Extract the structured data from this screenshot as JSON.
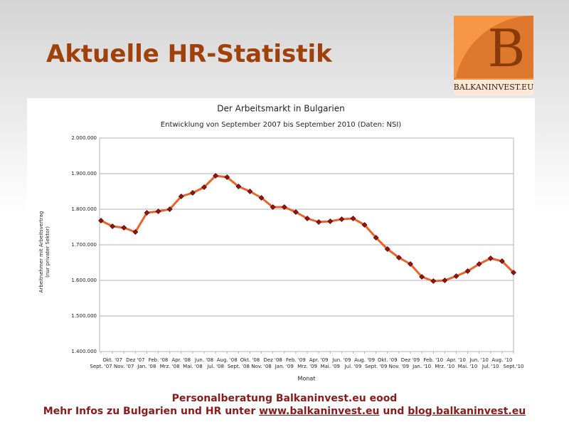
{
  "slide": {
    "title": "Aktuelle HR-Statistik",
    "logo_letter": "B",
    "logo_text": "BALKANINVEST.EU",
    "footer": {
      "line1": "Personalberatung Balkaninvest.eu eood",
      "line2_prefix": "Mehr Infos zu Bulgarien und HR unter ",
      "link1": "www.balkaninvest.eu",
      "joiner": " und ",
      "link2": "blog.balkaninvest.eu"
    }
  },
  "chart_data": {
    "type": "line",
    "title": "Der Arbeitsmarkt in Bulgarien",
    "subtitle": "Entwicklung von September 2007 bis September 2010 (Daten: NSI)",
    "x_label": "Monat",
    "y_label": [
      "Arbeitnehmer mit Arbeitsvertrag",
      "(nur privater Sektor)"
    ],
    "categories": [
      "Sept. '07",
      "Okt. '07",
      "Nov. '07",
      "Dez '07",
      "Jan. '08",
      "Feb. '08",
      "Mrz. '08",
      "Apr. '08",
      "Mai. '08",
      "Jun. '08",
      "Jul. '08",
      "Aug. '08",
      "Sept. '08",
      "Okt. '08",
      "Nov. '08",
      "Dez '08",
      "Jan. '09",
      "Feb. '09",
      "Mrz. '09",
      "Apr. '09",
      "Mai. '09",
      "Jun. '09",
      "Jul. '09",
      "Aug. '09",
      "Sept. '09",
      "Okt. '09",
      "Nov. '09",
      "Dez '09",
      "Jan. '10",
      "Feb. '10",
      "Mrz. '10",
      "Apr. '10",
      "Mai. '10",
      "Jun. '10",
      "Jul. '10",
      "Aug. '10",
      "Sept.'10"
    ],
    "values": [
      1768000,
      1752000,
      1748000,
      1736000,
      1790000,
      1794000,
      1800000,
      1836000,
      1846000,
      1862000,
      1894000,
      1890000,
      1864000,
      1850000,
      1832000,
      1806000,
      1806000,
      1792000,
      1774000,
      1764000,
      1766000,
      1772000,
      1774000,
      1756000,
      1720000,
      1688000,
      1664000,
      1646000,
      1610000,
      1598000,
      1600000,
      1612000,
      1626000,
      1646000,
      1662000,
      1654000,
      1622000
    ],
    "color": "#e8642a",
    "marker_color": "#a01010",
    "ylim": [
      1400000,
      2000000
    ],
    "yticks": [
      {
        "value": 1400000,
        "label": "1.400.000"
      },
      {
        "value": 1500000,
        "label": "1.500.000"
      },
      {
        "value": 1600000,
        "label": "1.600.000"
      },
      {
        "value": 1700000,
        "label": "1.700.000"
      },
      {
        "value": 1800000,
        "label": "1.800.000"
      },
      {
        "value": 1900000,
        "label": "1.900.000"
      },
      {
        "value": 2000000,
        "label": "2.000.000"
      }
    ],
    "grid": true
  }
}
